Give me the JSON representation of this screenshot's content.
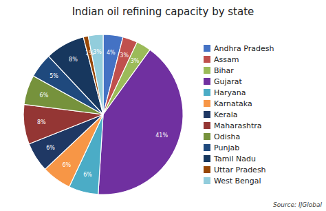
{
  "chart_data": {
    "type": "pie",
    "title": "Indian oil refining capacity by state",
    "source": "Source: IJGlobal",
    "categories": [
      "Andhra Pradesh",
      "Assam",
      "Bihar",
      "Gujarat",
      "Haryana",
      "Karnataka",
      "Kerala",
      "Maharashtra",
      "Odisha",
      "Punjab",
      "Tamil Nadu",
      "Uttar Pradesh",
      "West Bengal"
    ],
    "values": [
      4,
      3,
      3,
      41,
      6,
      6,
      6,
      8,
      6,
      5,
      8,
      1,
      3
    ],
    "value_labels": [
      "4%",
      "3%",
      "3%",
      "41%",
      "6%",
      "6%",
      "6%",
      "8%",
      "6%",
      "5%",
      "8%",
      "1%",
      "3%"
    ],
    "colors": [
      "#4472C4",
      "#C0504D",
      "#9BBB59",
      "#7030A0",
      "#4BACC6",
      "#F79646",
      "#1F3864",
      "#943634",
      "#76923C",
      "#1F497D",
      "#17375E",
      "#974706",
      "#92CDDC"
    ],
    "data_labels": true,
    "legend": "right"
  }
}
